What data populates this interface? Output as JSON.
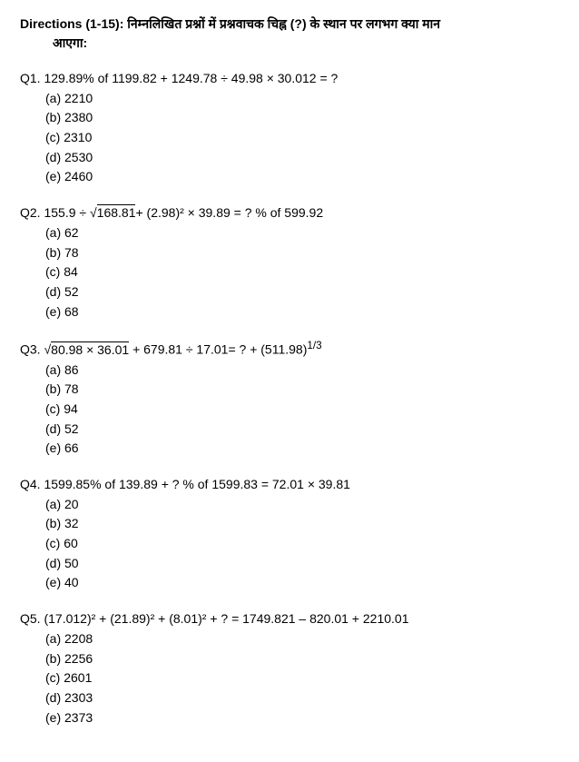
{
  "directions": {
    "label": "Directions (1-15):",
    "text_line1": "निम्नलिखित प्रश्नों में प्रश्नवाचक चिह्न (?) के स्थान पर लगभग क्या मान",
    "text_line2": "आएगा:"
  },
  "questions": [
    {
      "num": "Q1.",
      "stem": "129.89% of 1199.82 + 1249.78 ÷ 49.98 × 30.012 = ?",
      "options": [
        {
          "label": "(a)",
          "text": "2210"
        },
        {
          "label": "(b)",
          "text": "2380"
        },
        {
          "label": "(c)",
          "text": "2310"
        },
        {
          "label": "(d)",
          "text": "2530"
        },
        {
          "label": "(e)",
          "text": "2460"
        }
      ]
    },
    {
      "num": "Q2.",
      "stem_before_radical": "155.9 ÷ √",
      "radical": "168.81",
      "stem_after_radical": "+ (2.98)² × 39.89 = ? % of 599.92",
      "options": [
        {
          "label": "(a)",
          "text": "62"
        },
        {
          "label": "(b)",
          "text": "78"
        },
        {
          "label": "(c)",
          "text": "84"
        },
        {
          "label": "(d)",
          "text": "52"
        },
        {
          "label": "(e)",
          "text": "68"
        }
      ]
    },
    {
      "num": "Q3.",
      "stem_sqrt_prefix": "√",
      "radical": "80.98 × 36.01",
      "stem_after_radical": " + 679.81 ÷ 17.01= ? + (511.98)",
      "exponent": "1/3",
      "options": [
        {
          "label": "(a)",
          "text": "86"
        },
        {
          "label": "(b)",
          "text": "78"
        },
        {
          "label": "(c)",
          "text": "94"
        },
        {
          "label": "(d)",
          "text": "52"
        },
        {
          "label": "(e)",
          "text": "66"
        }
      ]
    },
    {
      "num": "Q4.",
      "stem": "1599.85% of 139.89 + ? % of 1599.83 = 72.01 × 39.81",
      "options": [
        {
          "label": "(a)",
          "text": "20"
        },
        {
          "label": "(b)",
          "text": "32"
        },
        {
          "label": "(c)",
          "text": "60"
        },
        {
          "label": "(d)",
          "text": "50"
        },
        {
          "label": "(e)",
          "text": "40"
        }
      ]
    },
    {
      "num": "Q5.",
      "stem": "(17.012)² + (21.89)² + (8.01)² + ? = 1749.821 – 820.01 + 2210.01",
      "options": [
        {
          "label": "(a)",
          "text": "2208"
        },
        {
          "label": "(b)",
          "text": "2256"
        },
        {
          "label": "(c)",
          "text": "2601"
        },
        {
          "label": "(d)",
          "text": "2303"
        },
        {
          "label": "(e)",
          "text": "2373"
        }
      ]
    }
  ]
}
